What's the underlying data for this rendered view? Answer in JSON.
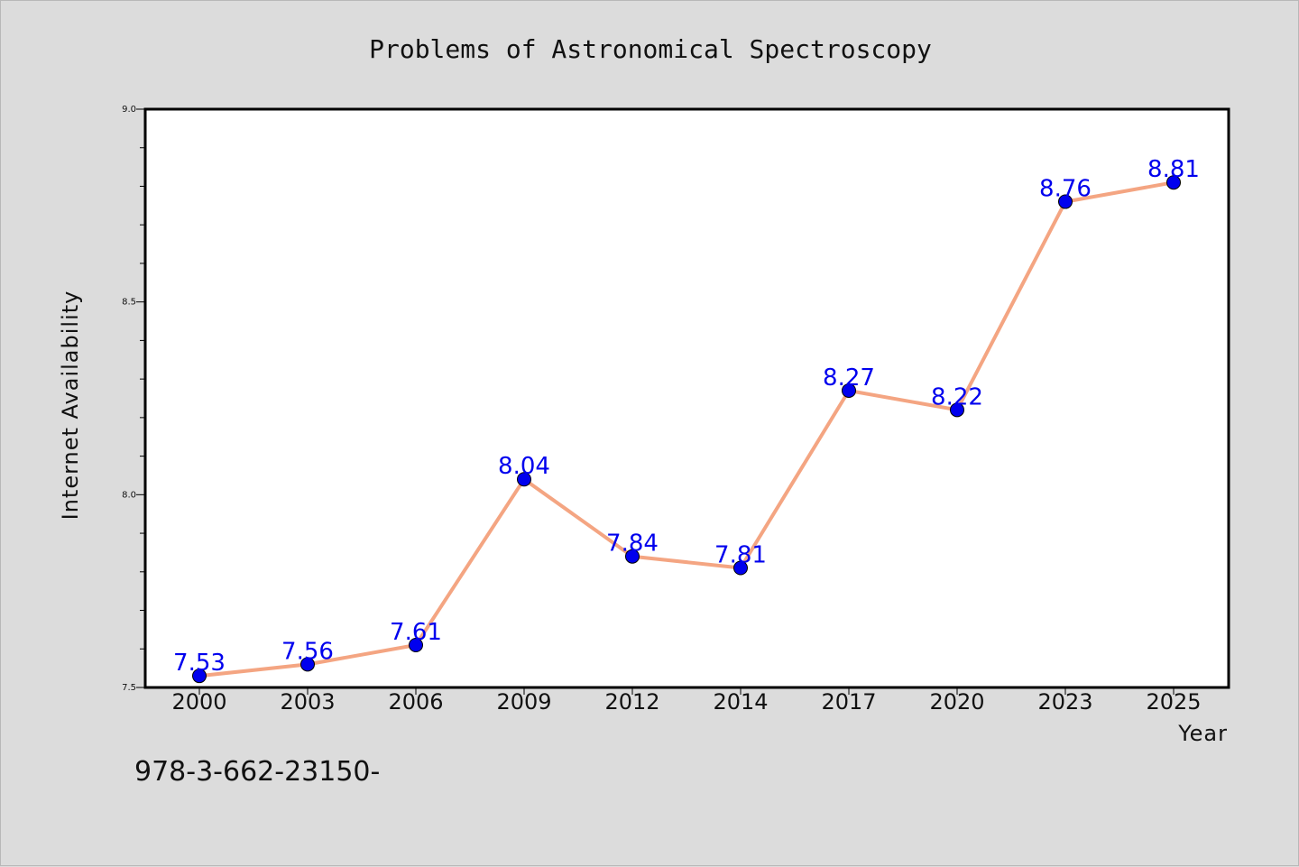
{
  "chart_data": {
    "type": "line",
    "title": "Problems of Astronomical Spectroscopy",
    "xlabel": "Year",
    "ylabel": "Internet Availability",
    "categories": [
      "2000",
      "2003",
      "2006",
      "2009",
      "2012",
      "2014",
      "2017",
      "2020",
      "2023",
      "2025"
    ],
    "series": [
      {
        "values": [
          7.53,
          7.56,
          7.61,
          8.04,
          7.84,
          7.81,
          8.27,
          8.22,
          8.76,
          8.81
        ],
        "data_labels": [
          "7.53",
          "7.56",
          "7.61",
          "8.04",
          "7.84",
          "7.81",
          "8.27",
          "8.22",
          "8.76",
          "8.81"
        ]
      }
    ],
    "ylim": [
      7.5,
      9.0
    ],
    "yticks": [
      "7.5",
      "8.0",
      "8.5",
      "9.0"
    ],
    "grid": false,
    "colors": {
      "line": "#f4a582",
      "marker": "#0000ee",
      "data_label": "#0000ee",
      "background": "#dcdcdc",
      "plot_area": "#ffffff"
    }
  },
  "footer": {
    "isbn": "978-3-662-23150-"
  }
}
